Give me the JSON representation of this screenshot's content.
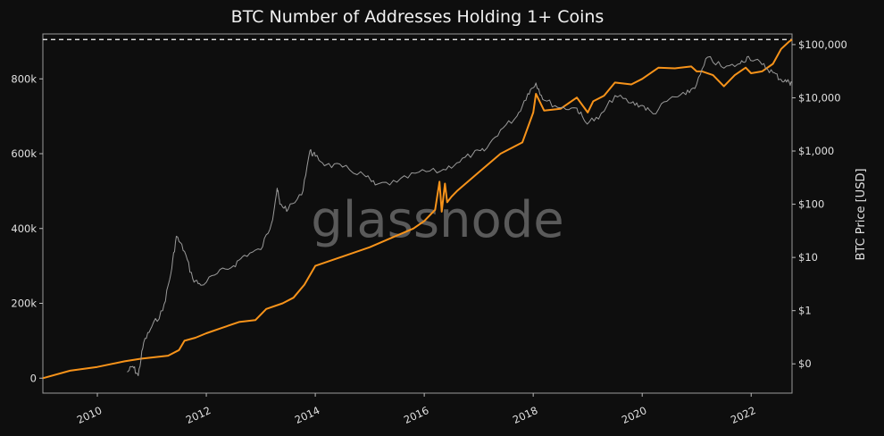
{
  "chart_data": {
    "type": "line",
    "title": "BTC Number of Addresses Holding 1+ Coins",
    "watermark": "glassnode",
    "x_range": [
      2009.0,
      2022.75
    ],
    "x_ticks": [
      "2010",
      "2012",
      "2014",
      "2016",
      "2018",
      "2020",
      "2022"
    ],
    "x_tick_values": [
      2010,
      2012,
      2014,
      2016,
      2018,
      2020,
      2022
    ],
    "y_left": {
      "range": [
        -40000,
        920000
      ],
      "ticks": [
        "0",
        "200k",
        "400k",
        "600k",
        "800k"
      ],
      "tick_values": [
        0,
        200000,
        400000,
        600000,
        800000
      ]
    },
    "y_right": {
      "label": "BTC Price [USD]",
      "scale": "log",
      "range_log10": [
        -1.55,
        5.2
      ],
      "ticks": [
        "$0",
        "$1",
        "$10",
        "$100",
        "$1,000",
        "$10,000",
        "$100,000"
      ],
      "tick_values": [
        0.1,
        1,
        10,
        100,
        1000,
        10000,
        100000
      ]
    },
    "reference_line": {
      "axis": "left",
      "y": 905000,
      "style": "dashed",
      "color": "#ffffff"
    },
    "series": [
      {
        "axis": "left",
        "color": "#f7931a",
        "x": [
          2009.0,
          2009.5,
          2010.0,
          2010.5,
          2010.8,
          2011.3,
          2011.5,
          2011.6,
          2011.8,
          2012.0,
          2012.3,
          2012.6,
          2012.9,
          2013.1,
          2013.4,
          2013.6,
          2013.8,
          2014.0,
          2014.3,
          2014.6,
          2015.0,
          2015.4,
          2015.8,
          2016.0,
          2016.2,
          2016.28,
          2016.32,
          2016.38,
          2016.42,
          2016.5,
          2016.6,
          2017.0,
          2017.4,
          2017.8,
          2018.0,
          2018.05,
          2018.2,
          2018.5,
          2018.8,
          2019.0,
          2019.1,
          2019.3,
          2019.5,
          2019.8,
          2020.0,
          2020.3,
          2020.6,
          2020.9,
          2021.0,
          2021.1,
          2021.3,
          2021.5,
          2021.7,
          2021.9,
          2022.0,
          2022.2,
          2022.4,
          2022.55,
          2022.7,
          2022.75
        ],
        "values": [
          0,
          20000,
          30000,
          45000,
          52000,
          60000,
          75000,
          100000,
          108000,
          120000,
          135000,
          150000,
          155000,
          185000,
          200000,
          215000,
          250000,
          300000,
          315000,
          330000,
          350000,
          375000,
          400000,
          420000,
          450000,
          525000,
          445000,
          520000,
          470000,
          485000,
          500000,
          550000,
          600000,
          630000,
          710000,
          760000,
          715000,
          720000,
          750000,
          710000,
          740000,
          755000,
          790000,
          785000,
          800000,
          830000,
          828000,
          833000,
          820000,
          820000,
          810000,
          780000,
          810000,
          830000,
          815000,
          820000,
          840000,
          880000,
          900000,
          905000
        ]
      },
      {
        "axis": "right",
        "color": "#9a9a9a",
        "x": [
          2010.55,
          2010.65,
          2010.75,
          2010.85,
          2011.0,
          2011.2,
          2011.35,
          2011.45,
          2011.6,
          2011.75,
          2011.9,
          2012.2,
          2012.5,
          2012.7,
          2013.0,
          2013.2,
          2013.3,
          2013.35,
          2013.5,
          2013.75,
          2013.9,
          2014.0,
          2014.2,
          2014.5,
          2014.9,
          2015.1,
          2015.5,
          2015.9,
          2016.3,
          2016.6,
          2016.9,
          2017.1,
          2017.4,
          2017.7,
          2017.9,
          2018.05,
          2018.2,
          2018.5,
          2018.8,
          2018.95,
          2019.2,
          2019.5,
          2019.8,
          2020.0,
          2020.2,
          2020.5,
          2020.8,
          2021.0,
          2021.2,
          2021.5,
          2021.8,
          2021.95,
          2022.2,
          2022.4,
          2022.55,
          2022.7,
          2022.75
        ],
        "values": [
          0.07,
          0.09,
          0.06,
          0.25,
          0.5,
          1.0,
          5.0,
          25,
          13,
          4,
          3,
          5,
          7,
          11,
          14,
          45,
          200,
          100,
          80,
          150,
          1000,
          800,
          550,
          500,
          350,
          230,
          260,
          400,
          420,
          600,
          900,
          1000,
          2500,
          4500,
          12000,
          19000,
          9000,
          6500,
          6400,
          3600,
          4000,
          11000,
          8000,
          7200,
          5000,
          9500,
          11500,
          18000,
          58000,
          36000,
          44000,
          60000,
          42000,
          30000,
          22000,
          19500,
          19000
        ]
      }
    ]
  }
}
